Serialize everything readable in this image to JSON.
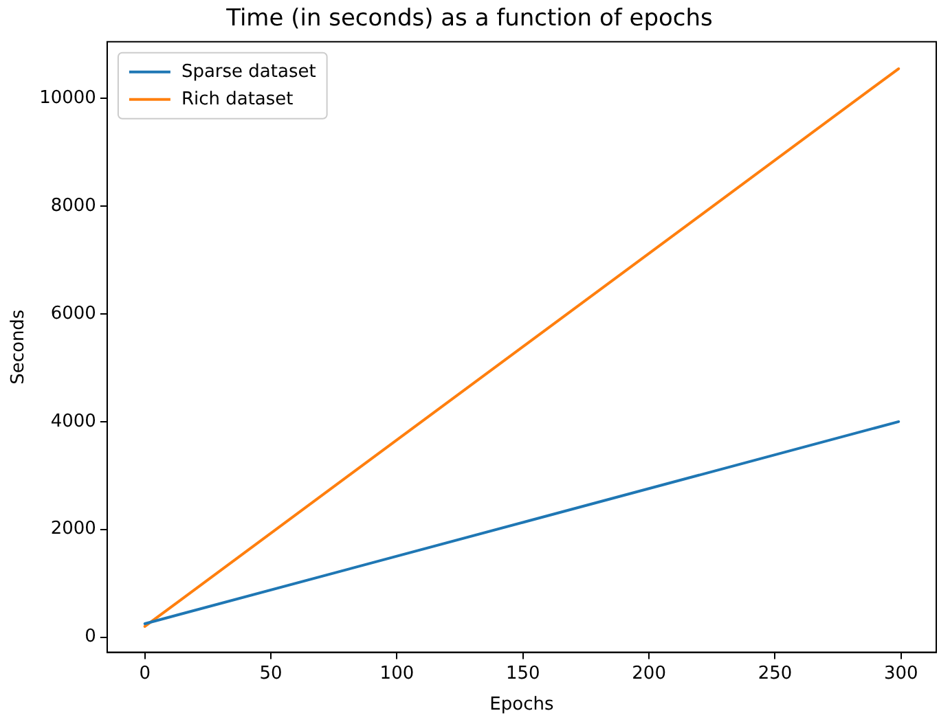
{
  "chart_data": {
    "type": "line",
    "title": "Time (in seconds) as a function of epochs",
    "xlabel": "Epochs",
    "ylabel": "Seconds",
    "x": [
      0,
      299
    ],
    "series": [
      {
        "name": "Sparse dataset",
        "color": "#1f77b4",
        "values": [
          250,
          4000
        ]
      },
      {
        "name": "Rich dataset",
        "color": "#ff7f0e",
        "values": [
          200,
          10550
        ]
      }
    ],
    "xlim": [
      -14.95,
      313.95
    ],
    "xticks": [
      0,
      50,
      100,
      150,
      200,
      250,
      300
    ],
    "ylim": [
      -280,
      11050
    ],
    "yticks": [
      0,
      2000,
      4000,
      6000,
      8000,
      10000
    ],
    "grid": false,
    "legend": "top left",
    "marker": "none",
    "line_style": "solid"
  }
}
